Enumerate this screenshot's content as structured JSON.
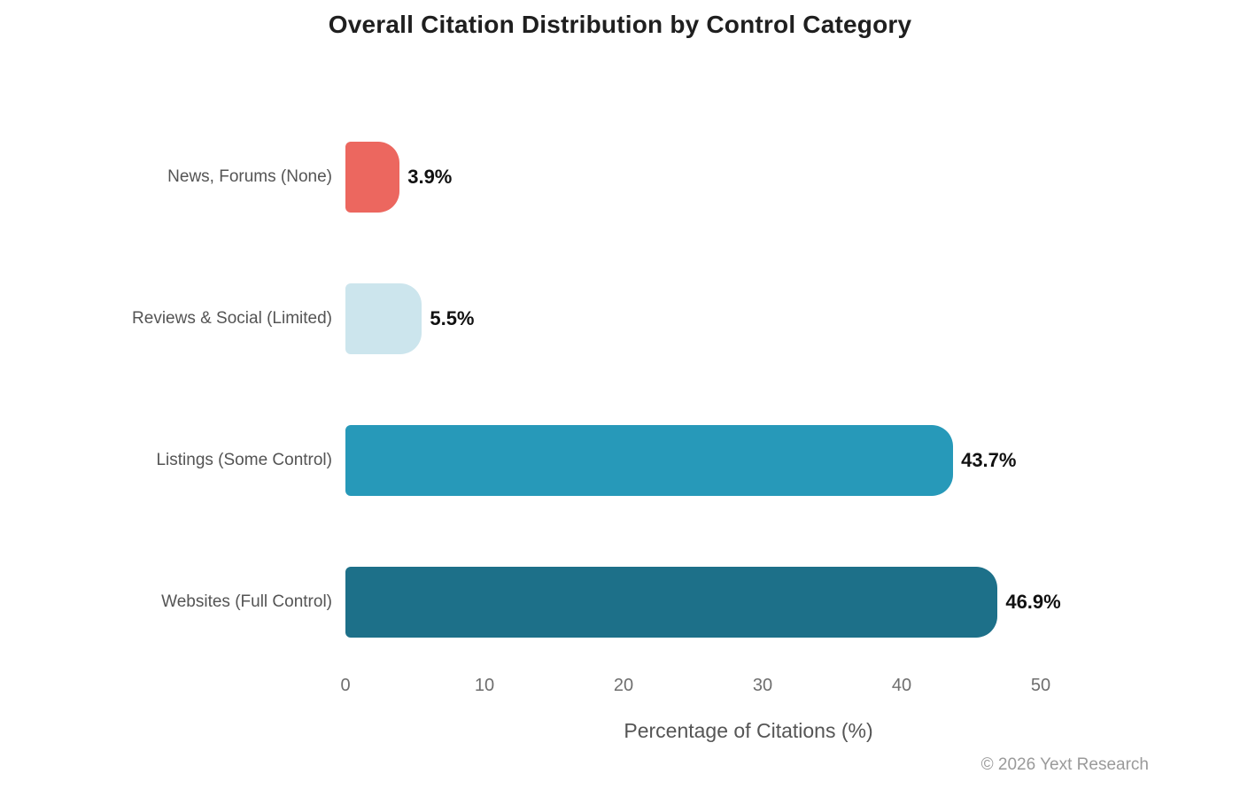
{
  "chart": {
    "title": "Overall Citation Distribution by Control Category",
    "xlabel": "Percentage of Citations (%)",
    "footer": "© 2026 Yext Research"
  },
  "chart_data": {
    "type": "bar",
    "orientation": "horizontal",
    "title": "Overall Citation Distribution by Control Category",
    "xlabel": "Percentage of Citations (%)",
    "ylabel": "",
    "categories": [
      "News, Forums (None)",
      "Reviews & Social (Limited)",
      "Listings (Some Control)",
      "Websites (Full Control)"
    ],
    "values": [
      3.9,
      5.5,
      43.7,
      46.9
    ],
    "value_labels": [
      "3.9%",
      "5.5%",
      "43.7%",
      "46.9%"
    ],
    "bar_colors": [
      "#ec675f",
      "#cce5ed",
      "#2799b9",
      "#1d7089"
    ],
    "xlim": [
      0,
      50
    ],
    "xticks": [
      0,
      10,
      20,
      30,
      40,
      50
    ],
    "grid": false,
    "legend": false,
    "annotation": "© 2026 Yext Research"
  }
}
